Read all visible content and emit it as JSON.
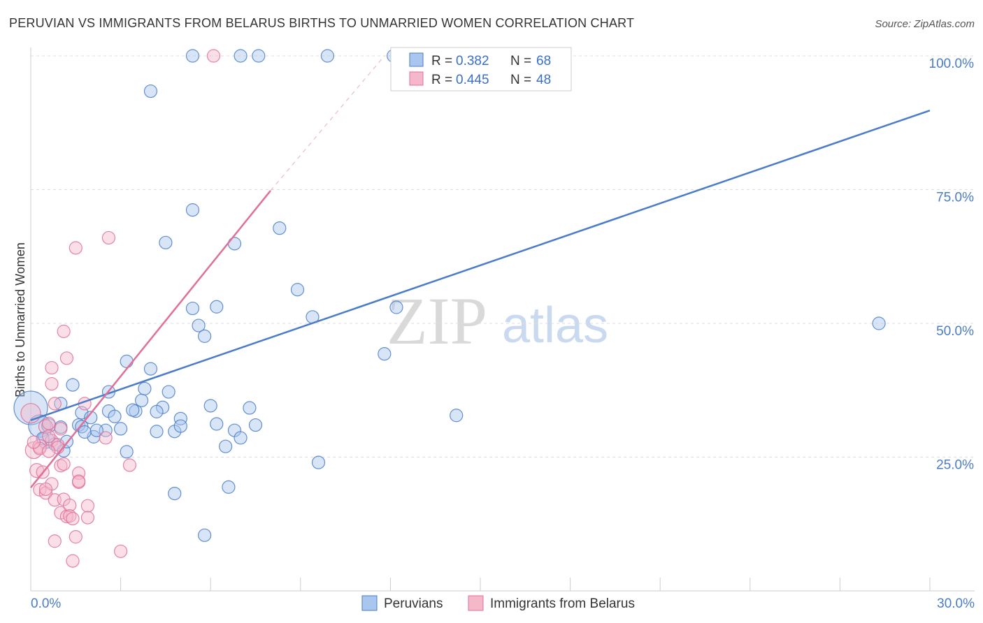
{
  "chart_data": {
    "type": "scatter",
    "title": "PERUVIAN VS IMMIGRANTS FROM BELARUS BIRTHS TO UNMARRIED WOMEN CORRELATION CHART",
    "source": "Source: ZipAtlas.com",
    "ylabel": "Births to Unmarried Women",
    "xlabel": "",
    "xlim": [
      0,
      30
    ],
    "ylim": [
      0,
      100
    ],
    "x_tick_labels": [
      "0.0%",
      "30.0%"
    ],
    "y_ticks": [
      {
        "value": 25,
        "label": "25.0%"
      },
      {
        "value": 50,
        "label": "50.0%"
      },
      {
        "value": 75,
        "label": "75.0%"
      },
      {
        "value": 100,
        "label": "100.0%"
      }
    ],
    "watermark": {
      "zip": "ZIP",
      "atlas": "atlas"
    },
    "legend": {
      "r_label": "R =",
      "n_label": "N =",
      "entries": [
        {
          "r": "0.382",
          "n": "68"
        },
        {
          "r": "0.445",
          "n": "48"
        }
      ]
    },
    "series": [
      {
        "name": "Peruvians",
        "color": "#4a7cc7",
        "fill": "#a9c6ee",
        "trend": {
          "x0": 0,
          "y0": 31.9,
          "x1": 30,
          "y1": 89.8
        },
        "points": [
          [
            0.0,
            34.2,
            24
          ],
          [
            0.3,
            30.8,
            16
          ],
          [
            0.5,
            28.2,
            12
          ],
          [
            0.6,
            30.9,
            10
          ],
          [
            0.8,
            27.4,
            9
          ],
          [
            1.0,
            30.6,
            9
          ],
          [
            1.1,
            26.2,
            9
          ],
          [
            1.2,
            27.9,
            9
          ],
          [
            1.6,
            31.0,
            9
          ],
          [
            1.7,
            33.3,
            9
          ],
          [
            2.0,
            32.4,
            9
          ],
          [
            2.1,
            28.8,
            9
          ],
          [
            2.5,
            30.0,
            9
          ],
          [
            2.6,
            33.6,
            9
          ],
          [
            2.8,
            32.6,
            9
          ],
          [
            3.0,
            30.3,
            9
          ],
          [
            3.2,
            42.9,
            9
          ],
          [
            3.5,
            33.6,
            9
          ],
          [
            3.7,
            35.6,
            9
          ],
          [
            3.8,
            37.8,
            9
          ],
          [
            4.0,
            41.5,
            9
          ],
          [
            4.2,
            29.8,
            9
          ],
          [
            4.4,
            34.3,
            9
          ],
          [
            4.6,
            37.2,
            9
          ],
          [
            4.8,
            29.8,
            9
          ],
          [
            5.0,
            32.2,
            9
          ],
          [
            5.0,
            30.8,
            9
          ],
          [
            5.4,
            52.8,
            9
          ],
          [
            5.6,
            49.6,
            9
          ],
          [
            5.8,
            47.6,
            9
          ],
          [
            6.0,
            34.6,
            9
          ],
          [
            6.2,
            53.1,
            9
          ],
          [
            6.5,
            27.0,
            9
          ],
          [
            6.8,
            30.0,
            9
          ],
          [
            7.0,
            28.6,
            9
          ],
          [
            7.3,
            34.2,
            9
          ],
          [
            7.5,
            31.0,
            9
          ],
          [
            8.3,
            67.8,
            9
          ],
          [
            8.9,
            56.3,
            9
          ],
          [
            9.4,
            51.2,
            9
          ],
          [
            9.6,
            24.0,
            9
          ],
          [
            11.8,
            44.3,
            9
          ],
          [
            12.2,
            53.0,
            9
          ],
          [
            14.2,
            32.8,
            9
          ],
          [
            28.3,
            50.0,
            9
          ],
          [
            5.4,
            71.2,
            9
          ],
          [
            6.8,
            64.9,
            9
          ],
          [
            4.5,
            65.1,
            9
          ],
          [
            4.0,
            93.4,
            9
          ],
          [
            5.4,
            100.0,
            9
          ],
          [
            7.0,
            100.0,
            9
          ],
          [
            7.6,
            100.0,
            9
          ],
          [
            9.9,
            100.0,
            9
          ],
          [
            12.1,
            100.0,
            9
          ],
          [
            5.8,
            10.4,
            9
          ],
          [
            4.8,
            18.2,
            9
          ],
          [
            6.6,
            19.4,
            9
          ],
          [
            3.2,
            26.0,
            9
          ],
          [
            2.6,
            37.2,
            9
          ],
          [
            1.0,
            35.0,
            9
          ],
          [
            1.4,
            38.5,
            9
          ],
          [
            1.7,
            30.7,
            9
          ],
          [
            2.2,
            30.0,
            9
          ],
          [
            0.4,
            28.5,
            9
          ],
          [
            1.8,
            29.7,
            9
          ],
          [
            3.4,
            33.8,
            9
          ],
          [
            4.2,
            33.5,
            9
          ],
          [
            6.2,
            31.2,
            9
          ]
        ]
      },
      {
        "name": "Immigrants from Belarus",
        "color": "#e07098",
        "fill": "#f5b8cb",
        "trend": {
          "x0": 0,
          "y0": 19.3,
          "x1": 8,
          "y1": 74.8
        },
        "trend_dashed": {
          "x0": 8,
          "y0": 74.8,
          "x1": 11.8,
          "y1": 100
        },
        "points": [
          [
            0.0,
            33.2,
            14
          ],
          [
            0.1,
            26.3,
            12
          ],
          [
            0.2,
            22.5,
            10
          ],
          [
            0.3,
            27.0,
            10
          ],
          [
            0.5,
            30.7,
            10
          ],
          [
            0.6,
            31.3,
            9
          ],
          [
            0.7,
            28.1,
            9
          ],
          [
            0.8,
            35.0,
            9
          ],
          [
            0.9,
            27.3,
            9
          ],
          [
            0.3,
            18.9,
            9
          ],
          [
            0.5,
            18.3,
            9
          ],
          [
            0.7,
            20.0,
            9
          ],
          [
            0.8,
            17.0,
            9
          ],
          [
            1.0,
            23.4,
            9
          ],
          [
            1.0,
            14.6,
            9
          ],
          [
            1.1,
            17.1,
            9
          ],
          [
            1.2,
            13.9,
            9
          ],
          [
            1.3,
            16.0,
            9
          ],
          [
            1.3,
            14.0,
            9
          ],
          [
            1.4,
            13.5,
            9
          ],
          [
            1.5,
            10.1,
            9
          ],
          [
            1.6,
            22.0,
            9
          ],
          [
            1.6,
            20.3,
            9
          ],
          [
            1.9,
            15.9,
            9
          ],
          [
            1.9,
            13.7,
            9
          ],
          [
            0.8,
            9.3,
            9
          ],
          [
            1.4,
            5.6,
            9
          ],
          [
            3.0,
            7.4,
            9
          ],
          [
            3.3,
            23.5,
            9
          ],
          [
            2.5,
            28.6,
            9
          ],
          [
            1.8,
            35.0,
            9
          ],
          [
            1.2,
            43.5,
            9
          ],
          [
            1.1,
            48.5,
            9
          ],
          [
            0.7,
            41.7,
            9
          ],
          [
            0.7,
            38.7,
            9
          ],
          [
            1.5,
            64.1,
            9
          ],
          [
            2.6,
            66.0,
            9
          ],
          [
            6.1,
            100.0,
            9
          ],
          [
            0.4,
            22.2,
            9
          ],
          [
            1.0,
            30.3,
            9
          ],
          [
            1.1,
            23.7,
            9
          ],
          [
            0.6,
            28.9,
            9
          ],
          [
            0.5,
            19.0,
            9
          ],
          [
            0.3,
            26.6,
            9
          ],
          [
            1.6,
            20.5,
            9
          ],
          [
            0.9,
            26.8,
            9
          ],
          [
            0.6,
            26.1,
            9
          ],
          [
            0.1,
            27.8,
            9
          ]
        ]
      }
    ]
  }
}
